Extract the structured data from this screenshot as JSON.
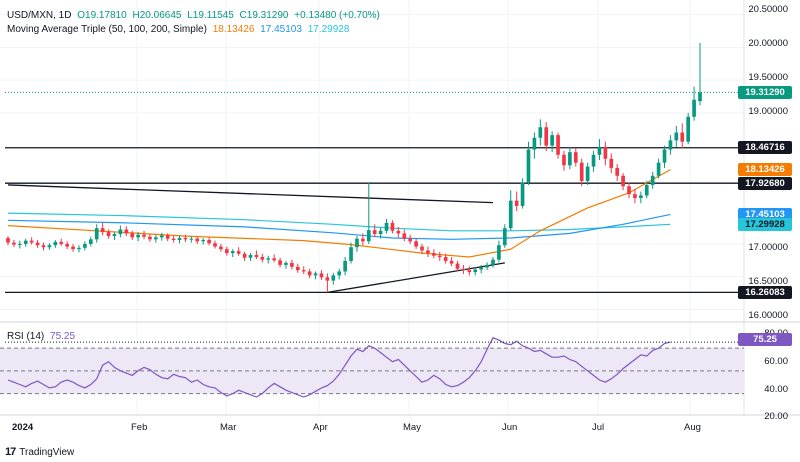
{
  "header": {
    "symbol": "USD/MXN, 1D",
    "open": "O19.17810",
    "high": "H20.06645",
    "low": "L19.11545",
    "close": "C19.31290",
    "change": "+0.13480 (+0.70%)",
    "ma_title": "Moving Average Triple (50, 100, 200, Simple)",
    "ma50_value": "18.13426",
    "ma100_value": "17.45103",
    "ma200_value": "17.29928",
    "rsi_title": "RSI (14)",
    "rsi_value": "75.25"
  },
  "price_axis": {
    "labels": [
      "20.50000",
      "20.00000",
      "19.50000",
      "19.00000",
      "17.00000",
      "16.50000",
      "16.00000"
    ]
  },
  "price_labels": [
    {
      "text": "19.31290",
      "price": 19.3129,
      "bg": "#089981",
      "fg": "#ffffff"
    },
    {
      "text": "18.46716",
      "price": 18.46716,
      "bg": "#131722",
      "fg": "#ffffff"
    },
    {
      "text": "18.13426",
      "price": 18.13426,
      "bg": "#f57c00",
      "fg": "#ffffff"
    },
    {
      "text": "17.92680",
      "price": 17.9268,
      "bg": "#131722",
      "fg": "#ffffff"
    },
    {
      "text": "17.45103",
      "price": 17.45103,
      "bg": "#2196f3",
      "fg": "#ffffff"
    },
    {
      "text": "17.29928",
      "price": 17.29928,
      "bg": "#26c6da",
      "fg": "#131722"
    },
    {
      "text": "16.26083",
      "price": 16.26083,
      "bg": "#131722",
      "fg": "#ffffff"
    }
  ],
  "rsi_axis": {
    "labels": [
      "80.00",
      "60.00",
      "40.00",
      "20.00"
    ],
    "current_label": "75.25"
  },
  "time_axis": [
    "2024",
    "Feb",
    "Mar",
    "Apr",
    "May",
    "Jun",
    "Jul",
    "Aug"
  ],
  "branding": "TradingView",
  "colors": {
    "up": "#089981",
    "down": "#f23645",
    "ma50": "#f57c00",
    "ma100": "#2196f3",
    "ma200": "#26c6da",
    "rsi": "#7e57c2",
    "rsi_band": "#ede7f6",
    "grid": "#f0f3fa"
  },
  "chart_data": {
    "type": "candlestick",
    "symbol": "USD/MXN",
    "interval": "1D",
    "y_range": [
      15.9,
      20.6
    ],
    "last_close": 19.3129,
    "horizontal_lines": [
      18.46716,
      17.9268,
      16.26083
    ],
    "candles": [
      {
        "o": 17.09,
        "h": 17.12,
        "l": 16.98,
        "c": 17.02
      },
      {
        "o": 17.02,
        "h": 17.06,
        "l": 16.95,
        "c": 16.99
      },
      {
        "o": 16.99,
        "h": 17.05,
        "l": 16.93,
        "c": 17.0
      },
      {
        "o": 17.0,
        "h": 17.08,
        "l": 16.96,
        "c": 17.05
      },
      {
        "o": 17.05,
        "h": 17.1,
        "l": 16.99,
        "c": 17.02
      },
      {
        "o": 17.02,
        "h": 17.06,
        "l": 16.94,
        "c": 16.98
      },
      {
        "o": 16.98,
        "h": 17.02,
        "l": 16.9,
        "c": 16.95
      },
      {
        "o": 16.95,
        "h": 17.01,
        "l": 16.91,
        "c": 16.98
      },
      {
        "o": 16.98,
        "h": 17.06,
        "l": 16.94,
        "c": 17.03
      },
      {
        "o": 17.03,
        "h": 17.08,
        "l": 16.97,
        "c": 17.0
      },
      {
        "o": 17.0,
        "h": 17.04,
        "l": 16.92,
        "c": 16.96
      },
      {
        "o": 16.96,
        "h": 17.0,
        "l": 16.88,
        "c": 16.92
      },
      {
        "o": 16.92,
        "h": 16.98,
        "l": 16.87,
        "c": 16.94
      },
      {
        "o": 16.94,
        "h": 17.04,
        "l": 16.9,
        "c": 17.0
      },
      {
        "o": 17.0,
        "h": 17.11,
        "l": 16.96,
        "c": 17.07
      },
      {
        "o": 17.07,
        "h": 17.3,
        "l": 17.02,
        "c": 17.24
      },
      {
        "o": 17.24,
        "h": 17.32,
        "l": 17.13,
        "c": 17.18
      },
      {
        "o": 17.18,
        "h": 17.22,
        "l": 17.08,
        "c": 17.12
      },
      {
        "o": 17.12,
        "h": 17.19,
        "l": 17.06,
        "c": 17.15
      },
      {
        "o": 17.15,
        "h": 17.28,
        "l": 17.1,
        "c": 17.22
      },
      {
        "o": 17.22,
        "h": 17.27,
        "l": 17.12,
        "c": 17.16
      },
      {
        "o": 17.16,
        "h": 17.2,
        "l": 17.06,
        "c": 17.1
      },
      {
        "o": 17.1,
        "h": 17.18,
        "l": 17.04,
        "c": 17.14
      },
      {
        "o": 17.14,
        "h": 17.2,
        "l": 17.07,
        "c": 17.11
      },
      {
        "o": 17.11,
        "h": 17.15,
        "l": 17.03,
        "c": 17.07
      },
      {
        "o": 17.07,
        "h": 17.14,
        "l": 17.02,
        "c": 17.1
      },
      {
        "o": 17.1,
        "h": 17.17,
        "l": 17.05,
        "c": 17.13
      },
      {
        "o": 17.13,
        "h": 17.16,
        "l": 17.04,
        "c": 17.08
      },
      {
        "o": 17.08,
        "h": 17.12,
        "l": 17.02,
        "c": 17.06
      },
      {
        "o": 17.06,
        "h": 17.13,
        "l": 17.01,
        "c": 17.09
      },
      {
        "o": 17.09,
        "h": 17.14,
        "l": 17.03,
        "c": 17.07
      },
      {
        "o": 17.07,
        "h": 17.12,
        "l": 17.02,
        "c": 17.08
      },
      {
        "o": 17.08,
        "h": 17.11,
        "l": 17.0,
        "c": 17.04
      },
      {
        "o": 17.04,
        "h": 17.09,
        "l": 16.99,
        "c": 17.06
      },
      {
        "o": 17.06,
        "h": 17.1,
        "l": 16.98,
        "c": 17.01
      },
      {
        "o": 17.01,
        "h": 17.05,
        "l": 16.93,
        "c": 16.96
      },
      {
        "o": 16.96,
        "h": 17.0,
        "l": 16.88,
        "c": 16.92
      },
      {
        "o": 16.92,
        "h": 16.96,
        "l": 16.82,
        "c": 16.86
      },
      {
        "o": 16.86,
        "h": 16.92,
        "l": 16.8,
        "c": 16.89
      },
      {
        "o": 16.89,
        "h": 16.95,
        "l": 16.82,
        "c": 16.85
      },
      {
        "o": 16.85,
        "h": 16.88,
        "l": 16.74,
        "c": 16.79
      },
      {
        "o": 16.79,
        "h": 16.86,
        "l": 16.74,
        "c": 16.83
      },
      {
        "o": 16.83,
        "h": 16.9,
        "l": 16.77,
        "c": 16.8
      },
      {
        "o": 16.8,
        "h": 16.85,
        "l": 16.72,
        "c": 16.76
      },
      {
        "o": 16.76,
        "h": 16.82,
        "l": 16.7,
        "c": 16.78
      },
      {
        "o": 16.78,
        "h": 16.84,
        "l": 16.72,
        "c": 16.75
      },
      {
        "o": 16.75,
        "h": 16.79,
        "l": 16.64,
        "c": 16.68
      },
      {
        "o": 16.68,
        "h": 16.74,
        "l": 16.62,
        "c": 16.71
      },
      {
        "o": 16.71,
        "h": 16.76,
        "l": 16.61,
        "c": 16.65
      },
      {
        "o": 16.65,
        "h": 16.7,
        "l": 16.56,
        "c": 16.6
      },
      {
        "o": 16.6,
        "h": 16.66,
        "l": 16.54,
        "c": 16.58
      },
      {
        "o": 16.58,
        "h": 16.62,
        "l": 16.48,
        "c": 16.52
      },
      {
        "o": 16.52,
        "h": 16.58,
        "l": 16.46,
        "c": 16.55
      },
      {
        "o": 16.55,
        "h": 16.6,
        "l": 16.45,
        "c": 16.49
      },
      {
        "o": 16.49,
        "h": 16.55,
        "l": 16.26,
        "c": 16.44
      },
      {
        "o": 16.44,
        "h": 16.56,
        "l": 16.38,
        "c": 16.52
      },
      {
        "o": 16.52,
        "h": 16.62,
        "l": 16.46,
        "c": 16.58
      },
      {
        "o": 16.58,
        "h": 16.8,
        "l": 16.52,
        "c": 16.74
      },
      {
        "o": 16.74,
        "h": 17.02,
        "l": 16.7,
        "c": 16.95
      },
      {
        "o": 16.95,
        "h": 17.12,
        "l": 16.88,
        "c": 17.08
      },
      {
        "o": 17.08,
        "h": 17.16,
        "l": 16.98,
        "c": 17.04
      },
      {
        "o": 17.04,
        "h": 17.93,
        "l": 17.0,
        "c": 17.21
      },
      {
        "o": 17.21,
        "h": 17.3,
        "l": 17.1,
        "c": 17.15
      },
      {
        "o": 17.15,
        "h": 17.25,
        "l": 17.08,
        "c": 17.2
      },
      {
        "o": 17.2,
        "h": 17.38,
        "l": 17.16,
        "c": 17.32
      },
      {
        "o": 17.32,
        "h": 17.36,
        "l": 17.16,
        "c": 17.2
      },
      {
        "o": 17.2,
        "h": 17.26,
        "l": 17.1,
        "c": 17.16
      },
      {
        "o": 17.16,
        "h": 17.22,
        "l": 17.04,
        "c": 17.08
      },
      {
        "o": 17.08,
        "h": 17.14,
        "l": 17.0,
        "c": 17.04
      },
      {
        "o": 17.04,
        "h": 17.08,
        "l": 16.92,
        "c": 16.96
      },
      {
        "o": 16.96,
        "h": 17.0,
        "l": 16.84,
        "c": 16.9
      },
      {
        "o": 16.9,
        "h": 16.96,
        "l": 16.8,
        "c": 16.86
      },
      {
        "o": 16.86,
        "h": 16.92,
        "l": 16.78,
        "c": 16.82
      },
      {
        "o": 16.82,
        "h": 16.88,
        "l": 16.74,
        "c": 16.8
      },
      {
        "o": 16.8,
        "h": 16.85,
        "l": 16.7,
        "c": 16.74
      },
      {
        "o": 16.74,
        "h": 16.8,
        "l": 16.66,
        "c": 16.7
      },
      {
        "o": 16.7,
        "h": 16.74,
        "l": 16.58,
        "c": 16.62
      },
      {
        "o": 16.62,
        "h": 16.68,
        "l": 16.54,
        "c": 16.6
      },
      {
        "o": 16.6,
        "h": 16.66,
        "l": 16.52,
        "c": 16.57
      },
      {
        "o": 16.57,
        "h": 16.64,
        "l": 16.52,
        "c": 16.61
      },
      {
        "o": 16.61,
        "h": 16.68,
        "l": 16.55,
        "c": 16.64
      },
      {
        "o": 16.64,
        "h": 16.72,
        "l": 16.6,
        "c": 16.68
      },
      {
        "o": 16.68,
        "h": 16.8,
        "l": 16.64,
        "c": 16.76
      },
      {
        "o": 16.76,
        "h": 17.05,
        "l": 16.72,
        "c": 16.98
      },
      {
        "o": 16.98,
        "h": 17.3,
        "l": 16.94,
        "c": 17.24
      },
      {
        "o": 17.24,
        "h": 17.82,
        "l": 17.2,
        "c": 17.66
      },
      {
        "o": 17.66,
        "h": 17.8,
        "l": 17.5,
        "c": 17.58
      },
      {
        "o": 17.58,
        "h": 18.0,
        "l": 17.54,
        "c": 17.94
      },
      {
        "o": 17.94,
        "h": 18.56,
        "l": 17.9,
        "c": 18.44
      },
      {
        "o": 18.44,
        "h": 18.7,
        "l": 18.3,
        "c": 18.62
      },
      {
        "o": 18.62,
        "h": 18.9,
        "l": 18.5,
        "c": 18.78
      },
      {
        "o": 18.78,
        "h": 18.86,
        "l": 18.42,
        "c": 18.5
      },
      {
        "o": 18.5,
        "h": 18.72,
        "l": 18.4,
        "c": 18.66
      },
      {
        "o": 18.66,
        "h": 18.7,
        "l": 18.3,
        "c": 18.36
      },
      {
        "o": 18.36,
        "h": 18.42,
        "l": 18.12,
        "c": 18.2
      },
      {
        "o": 18.2,
        "h": 18.48,
        "l": 18.14,
        "c": 18.4
      },
      {
        "o": 18.4,
        "h": 18.46,
        "l": 18.18,
        "c": 18.24
      },
      {
        "o": 18.24,
        "h": 18.3,
        "l": 17.88,
        "c": 17.96
      },
      {
        "o": 17.96,
        "h": 18.24,
        "l": 17.9,
        "c": 18.18
      },
      {
        "o": 18.18,
        "h": 18.42,
        "l": 18.1,
        "c": 18.36
      },
      {
        "o": 18.36,
        "h": 18.6,
        "l": 18.28,
        "c": 18.48
      },
      {
        "o": 18.48,
        "h": 18.56,
        "l": 18.2,
        "c": 18.3
      },
      {
        "o": 18.3,
        "h": 18.38,
        "l": 18.08,
        "c": 18.16
      },
      {
        "o": 18.16,
        "h": 18.22,
        "l": 17.96,
        "c": 18.04
      },
      {
        "o": 18.04,
        "h": 18.08,
        "l": 17.82,
        "c": 17.88
      },
      {
        "o": 17.88,
        "h": 17.94,
        "l": 17.7,
        "c": 17.76
      },
      {
        "o": 17.76,
        "h": 17.84,
        "l": 17.62,
        "c": 17.7
      },
      {
        "o": 17.7,
        "h": 17.8,
        "l": 17.62,
        "c": 17.74
      },
      {
        "o": 17.74,
        "h": 17.96,
        "l": 17.7,
        "c": 17.9
      },
      {
        "o": 17.9,
        "h": 18.1,
        "l": 17.84,
        "c": 18.04
      },
      {
        "o": 18.04,
        "h": 18.3,
        "l": 18.0,
        "c": 18.24
      },
      {
        "o": 18.24,
        "h": 18.5,
        "l": 18.16,
        "c": 18.44
      },
      {
        "o": 18.44,
        "h": 18.66,
        "l": 18.36,
        "c": 18.58
      },
      {
        "o": 18.58,
        "h": 18.8,
        "l": 18.48,
        "c": 18.7
      },
      {
        "o": 18.7,
        "h": 18.84,
        "l": 18.46,
        "c": 18.56
      },
      {
        "o": 18.56,
        "h": 19.0,
        "l": 18.52,
        "c": 18.94
      },
      {
        "o": 18.94,
        "h": 19.4,
        "l": 18.88,
        "c": 19.2
      },
      {
        "o": 19.1781,
        "h": 20.06645,
        "l": 19.11545,
        "c": 19.3129
      }
    ],
    "ma50": [
      [
        0,
        17.28
      ],
      [
        30,
        17.12
      ],
      [
        50,
        17.05
      ],
      [
        58,
        16.99
      ],
      [
        70,
        16.86
      ],
      [
        78,
        16.8
      ],
      [
        85,
        16.92
      ],
      [
        90,
        17.2
      ],
      [
        98,
        17.55
      ],
      [
        105,
        17.78
      ],
      [
        112,
        18.13426
      ]
    ],
    "ma100": [
      [
        0,
        17.36
      ],
      [
        20,
        17.32
      ],
      [
        40,
        17.26
      ],
      [
        55,
        17.17
      ],
      [
        65,
        17.09
      ],
      [
        75,
        17.07
      ],
      [
        85,
        17.09
      ],
      [
        95,
        17.16
      ],
      [
        104,
        17.3
      ],
      [
        112,
        17.45103
      ]
    ],
    "ma200": [
      [
        0,
        17.47
      ],
      [
        20,
        17.43
      ],
      [
        40,
        17.37
      ],
      [
        55,
        17.3
      ],
      [
        65,
        17.24
      ],
      [
        75,
        17.2
      ],
      [
        85,
        17.2
      ],
      [
        95,
        17.22
      ],
      [
        104,
        17.26
      ],
      [
        112,
        17.29928
      ]
    ],
    "trendlines": [
      {
        "from": [
          0,
          17.9
        ],
        "to": [
          82,
          17.63
        ]
      },
      {
        "from": [
          54,
          16.26
        ],
        "to": [
          84,
          16.71
        ]
      }
    ],
    "rsi": {
      "range": [
        20,
        85
      ],
      "levels": [
        70,
        50,
        30
      ],
      "values": [
        42,
        40,
        38,
        36,
        39,
        41,
        38,
        35,
        36,
        40,
        42,
        40,
        37,
        35,
        38,
        43,
        55,
        58,
        53,
        50,
        48,
        46,
        50,
        53,
        51,
        47,
        44,
        43,
        47,
        45,
        44,
        40,
        42,
        38,
        36,
        35,
        31,
        28,
        30,
        33,
        31,
        29,
        27,
        30,
        35,
        39,
        36,
        33,
        31,
        29,
        27,
        29,
        32,
        35,
        37,
        41,
        47,
        55,
        63,
        69,
        67,
        72,
        70,
        66,
        62,
        58,
        60,
        55,
        50,
        45,
        40,
        42,
        46,
        43,
        38,
        36,
        37,
        40,
        44,
        50,
        58,
        69,
        79,
        77,
        74,
        73,
        76,
        72,
        70,
        67,
        68,
        65,
        62,
        62,
        63,
        60,
        58,
        54,
        50,
        46,
        42,
        40,
        43,
        47,
        52,
        56,
        60,
        64,
        63,
        68,
        70,
        74,
        75.25
      ]
    },
    "time_labels": [
      "2024",
      "Feb",
      "Mar",
      "Apr",
      "May",
      "Jun",
      "Jul",
      "Aug"
    ]
  }
}
